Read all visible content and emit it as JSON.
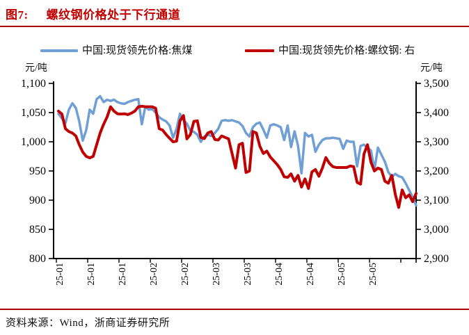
{
  "title": {
    "label": "图7:",
    "text": "螺纹钢价格处于下行通道"
  },
  "legend": {
    "items": [
      {
        "label": "中国:现货领先价格:焦煤",
        "color": "#6f9fd4"
      },
      {
        "label": "中国:现货领先价格:螺纹钢: 右",
        "color": "#c00000"
      }
    ]
  },
  "axis_units": {
    "left": "元/吨",
    "right": "元/吨"
  },
  "source": "资料来源：Wind，浙商证券研究所",
  "colors": {
    "accent_red": "#c00000",
    "divider_red": "#ae0000",
    "coal_blue": "#6f9fd4",
    "axis": "#000000"
  },
  "chart_data": {
    "type": "line",
    "title": "螺纹钢价格处于下行通道",
    "x_tick_labels": [
      "25-01",
      "25-01",
      "25-01",
      "25-02",
      "25-02",
      "25-03",
      "25-03",
      "25-04",
      "25-04",
      "25-05",
      "25-05"
    ],
    "left_axis": {
      "label": "元/吨",
      "min": 800,
      "max": 1100,
      "ticks": [
        "1,100",
        "1,050",
        "1,000",
        "950",
        "900",
        "850",
        "800"
      ]
    },
    "right_axis": {
      "label": "元/吨",
      "min": 2900,
      "max": 3500,
      "ticks": [
        "3,500",
        "3,400",
        "3,300",
        "3,200",
        "3,100",
        "3,000",
        "2,900"
      ]
    },
    "legend_position": "top",
    "grid": false,
    "series": [
      {
        "name": "中国:现货领先价格:焦煤",
        "axis": "left",
        "color": "#6f9fd4",
        "values": [
          1048,
          1040,
          1032,
          1055,
          1066,
          1058,
          1035,
          1002,
          1020,
          1055,
          1048,
          1073,
          1078,
          1068,
          1072,
          1070,
          1072,
          1068,
          1066,
          1065,
          1068,
          1070,
          1072,
          1073,
          1030,
          1060,
          1055,
          1056,
          1050,
          1042,
          1038,
          1035,
          1028,
          1007,
          1022,
          1048,
          1037,
          1031,
          1019,
          1017,
          1012,
          1000,
          1009,
          1012,
          1010,
          1015,
          1022,
          1036,
          1037,
          1036,
          1037,
          1035,
          1033,
          1027,
          1015,
          1009,
          1025,
          1031,
          1033,
          1021,
          1007,
          1028,
          1030,
          1028,
          1025,
          1003,
          1028,
          991,
          1018,
          993,
          946,
          1015,
          1009,
          1012,
          983,
          995,
          1003,
          1006,
          1006,
          1007,
          1006,
          1005,
          988,
          1002,
          1000,
          1000,
          958,
          993,
          995,
          990,
          985,
          952,
          990,
          978,
          966,
          948,
          940,
          945,
          941,
          939,
          929,
          917,
          905,
          891
        ]
      },
      {
        "name": "中国:现货领先价格:螺纹钢",
        "axis": "right",
        "color": "#c00000",
        "values": [
          3405,
          3395,
          3345,
          3335,
          3330,
          3320,
          3290,
          3265,
          3250,
          3245,
          3250,
          3290,
          3330,
          3360,
          3385,
          3420,
          3405,
          3396,
          3395,
          3396,
          3393,
          3398,
          3405,
          3420,
          3422,
          3420,
          3420,
          3420,
          3415,
          3345,
          3340,
          3325,
          3312,
          3300,
          3302,
          3372,
          3390,
          3310,
          3325,
          3370,
          3372,
          3315,
          3311,
          3330,
          3335,
          3308,
          3306,
          3320,
          3315,
          3310,
          3260,
          3210,
          3290,
          3295,
          3195,
          3200,
          3335,
          3330,
          3285,
          3260,
          3268,
          3248,
          3235,
          3222,
          3205,
          3180,
          3178,
          3190,
          3165,
          3185,
          3145,
          3173,
          3140,
          3197,
          3205,
          3182,
          3210,
          3246,
          3227,
          3215,
          3212,
          3212,
          3212,
          3212,
          3217,
          3215,
          3161,
          3155,
          3258,
          3290,
          3230,
          3200,
          3210,
          3205,
          3165,
          3158,
          3185,
          3120,
          3075,
          3135,
          3108,
          3118,
          3095,
          3123
        ]
      }
    ]
  }
}
